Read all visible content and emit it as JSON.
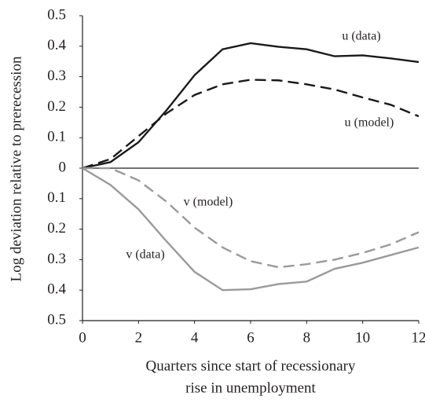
{
  "chart_data": {
    "type": "line",
    "ylabel": "Log deviation relative to prerecession",
    "xlabel": [
      "Quarters since start of recessionary",
      "rise in unemployment"
    ],
    "x": [
      0,
      1,
      2,
      3,
      4,
      5,
      6,
      7,
      8,
      9,
      10,
      11,
      12
    ],
    "xlim": [
      0,
      12
    ],
    "xticks": [
      0,
      2,
      4,
      6,
      8,
      10,
      12
    ],
    "ylim": [
      -0.5,
      0.5
    ],
    "yticks": [
      {
        "value": -0.5,
        "label": "0.5"
      },
      {
        "value": -0.4,
        "label": "0.4"
      },
      {
        "value": -0.3,
        "label": "0.3"
      },
      {
        "value": -0.2,
        "label": "0.2"
      },
      {
        "value": -0.1,
        "label": "0.1"
      },
      0,
      0.1,
      0.2,
      0.3,
      0.4,
      0.5
    ],
    "series": [
      {
        "name": "u (data)",
        "color": "#1a1a1a",
        "dashed": false,
        "values": [
          0,
          0.02,
          0.085,
          0.19,
          0.305,
          0.39,
          0.41,
          0.398,
          0.39,
          0.367,
          0.37,
          0.36,
          0.348
        ]
      },
      {
        "name": "u (model)",
        "color": "#1a1a1a",
        "dashed": true,
        "values": [
          0,
          0.03,
          0.105,
          0.18,
          0.24,
          0.275,
          0.29,
          0.288,
          0.275,
          0.258,
          0.232,
          0.208,
          0.17
        ]
      },
      {
        "name": "v (model)",
        "color": "#9a9a9a",
        "dashed": true,
        "values": [
          0,
          0,
          -0.04,
          -0.11,
          -0.195,
          -0.26,
          -0.305,
          -0.325,
          -0.315,
          -0.3,
          -0.278,
          -0.25,
          -0.21
        ]
      },
      {
        "name": "v (data)",
        "color": "#9a9a9a",
        "dashed": false,
        "values": [
          0,
          -0.055,
          -0.135,
          -0.24,
          -0.34,
          -0.4,
          -0.397,
          -0.38,
          -0.372,
          -0.33,
          -0.31,
          -0.285,
          -0.26
        ]
      }
    ]
  }
}
